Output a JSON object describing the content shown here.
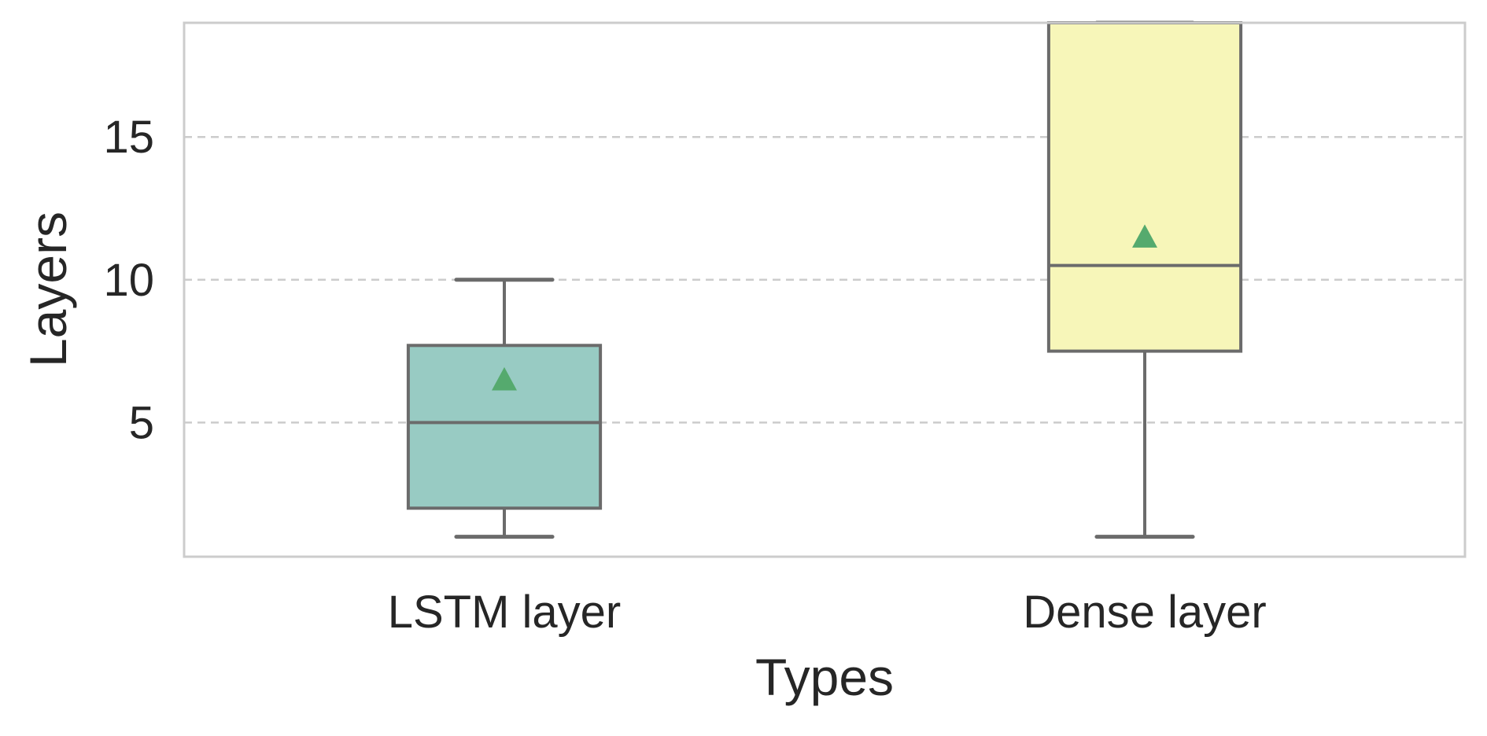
{
  "chart_data": {
    "type": "box",
    "xlabel": "Types",
    "ylabel": "Layers",
    "ylim": [
      0.3,
      19.0
    ],
    "yticks": [
      5,
      10,
      15
    ],
    "grid": {
      "y": true,
      "x": false,
      "style": "dashed",
      "color": "#cccccc"
    },
    "categories": [
      "LSTM layer",
      "Dense layer"
    ],
    "boxes": [
      {
        "category": "LSTM layer",
        "whisker_low": 1,
        "q1": 2,
        "median": 5,
        "q3": 7.7,
        "whisker_high": 10,
        "mean": 6.5,
        "color": "#98cbc3"
      },
      {
        "category": "Dense layer",
        "whisker_low": 1,
        "q1": 7.5,
        "median": 10.5,
        "q3": 19,
        "whisker_high": 19,
        "mean": 11.5,
        "color": "#f7f6b9"
      }
    ],
    "colors": {
      "box_edge": "#6b6b6b",
      "mean_marker": "#55aa6e",
      "frame": "#cccccc"
    }
  }
}
